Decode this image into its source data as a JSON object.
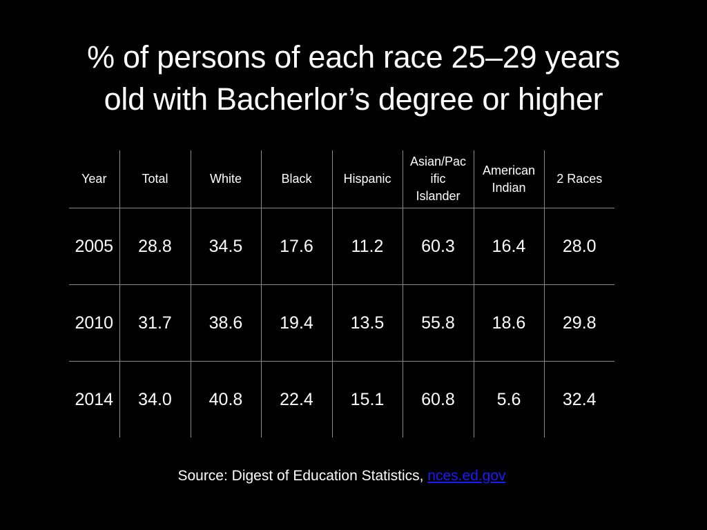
{
  "slide": {
    "title_line1": "% of persons of each race 25–29 years",
    "title_line2": "old with Bacherlor’s degree or higher"
  },
  "table": {
    "headers": [
      [
        "Year"
      ],
      [
        "Total"
      ],
      [
        "White"
      ],
      [
        "Black"
      ],
      [
        "Hispanic"
      ],
      [
        "Asian/Pac",
        "ific",
        "Islander"
      ],
      [
        "American",
        "Indian"
      ],
      [
        "2 Races"
      ]
    ],
    "rows": [
      [
        "2005",
        "28.8",
        "34.5",
        "17.6",
        "11.2",
        "60.3",
        "16.4",
        "28.0"
      ],
      [
        "2010",
        "31.7",
        "38.6",
        "19.4",
        "13.5",
        "55.8",
        "18.6",
        "29.8"
      ],
      [
        "2014",
        "34.0",
        "40.8",
        "22.4",
        "15.1",
        "60.8",
        "5.6",
        "32.4"
      ]
    ]
  },
  "source": {
    "prefix": "Source: Digest of Education Statistics, ",
    "link_text": "nces.ed.gov"
  },
  "colors": {
    "background": "#000000",
    "text": "#ffffff",
    "link": "#1a1aff",
    "rule": "#8a8a8a"
  }
}
